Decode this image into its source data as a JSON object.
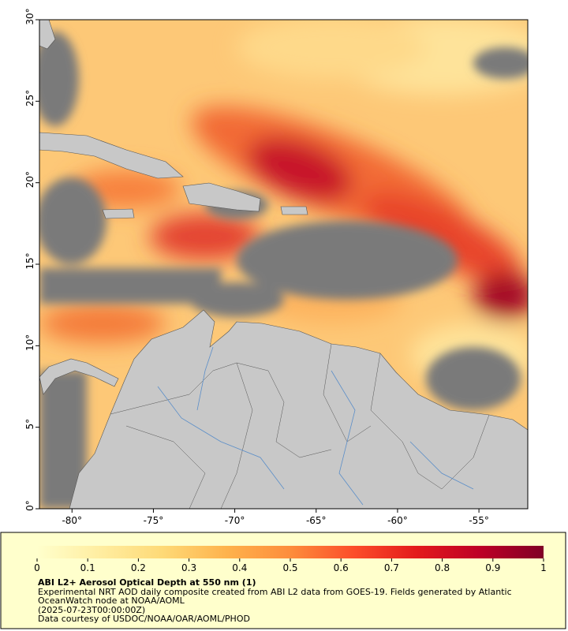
{
  "map": {
    "xlim": [
      -82,
      -52
    ],
    "ylim": [
      0,
      30
    ],
    "xticks": [
      {
        "value": -80,
        "label": "-80°"
      },
      {
        "value": -75,
        "label": "-75°"
      },
      {
        "value": -70,
        "label": "-70°"
      },
      {
        "value": -65,
        "label": "-65°"
      },
      {
        "value": -60,
        "label": "-60°"
      },
      {
        "value": -55,
        "label": "-55°"
      }
    ],
    "yticks": [
      {
        "value": 0,
        "label": "0°"
      },
      {
        "value": 5,
        "label": "5°"
      },
      {
        "value": 10,
        "label": "10°"
      },
      {
        "value": 15,
        "label": "15°"
      },
      {
        "value": 20,
        "label": "20°"
      },
      {
        "value": 25,
        "label": "25°"
      },
      {
        "value": 30,
        "label": "30°"
      }
    ]
  },
  "colorbar": {
    "range": [
      0,
      1
    ],
    "ticks": [
      0,
      0.1,
      0.2,
      0.3,
      0.4,
      0.5,
      0.6,
      0.7,
      0.8,
      0.9,
      1
    ],
    "colors": [
      "#ffffcc",
      "#ffeda0",
      "#fed976",
      "#feb24c",
      "#fd8d3c",
      "#fc4e2a",
      "#e31a1c",
      "#bd0026",
      "#800026"
    ]
  },
  "caption": {
    "title": "ABI L2+ Aerosol Optical Depth at 550 nm (1)",
    "description": "Experimental NRT AOD daily composite created from ABI L2 data from GOES-19. Fields generated by Atlantic OceanWatch node at NOAA/AOML",
    "date": "(2025-07-23T00:00:00Z)",
    "credit": "Data courtesy of USDOC/NOAA/OAR/AOML/PHOD"
  }
}
